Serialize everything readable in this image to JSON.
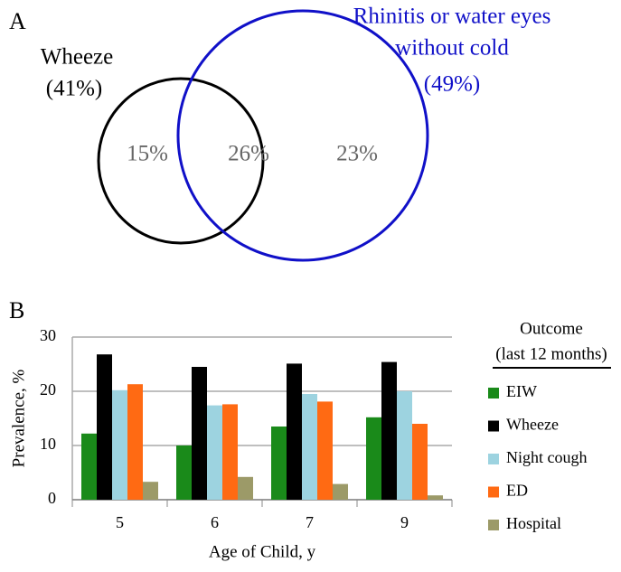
{
  "chart_data": [
    {
      "type": "venn",
      "panel": "A",
      "sets": [
        {
          "label": [
            "Wheeze"
          ],
          "value": 41,
          "value_label": "(41%)",
          "color": "#000000"
        },
        {
          "label": [
            "Rhinitis or water eyes",
            "without cold"
          ],
          "value": 49,
          "value_label": "(49%)",
          "color": "#1010c8"
        }
      ],
      "values": [
        15,
        26,
        23
      ],
      "value_labels": [
        "15%",
        "26%",
        "23%"
      ]
    },
    {
      "type": "bar",
      "panel": "B",
      "xlabel": "Age of Child, y",
      "ylabel": "Prevalence, %",
      "categories": [
        "5",
        "6",
        "7",
        "9"
      ],
      "ylim": [
        0,
        30
      ],
      "yticks": [
        0,
        10,
        20,
        30
      ],
      "grid": true,
      "legend_title": [
        "Outcome",
        "(last 12 months)"
      ],
      "series": [
        {
          "name": "EIW",
          "color": "#1a8a1a",
          "values": [
            12.2,
            10,
            13.5,
            15.2
          ]
        },
        {
          "name": "Wheeze",
          "color": "#000000",
          "values": [
            26.8,
            24.5,
            25.1,
            25.4
          ]
        },
        {
          "name": "Night cough",
          "color": "#9dd3e0",
          "values": [
            20.2,
            17.4,
            19.5,
            20
          ]
        },
        {
          "name": "ED",
          "color": "#ff6a13",
          "values": [
            21.3,
            17.6,
            18.1,
            14
          ]
        },
        {
          "name": "Hospital",
          "color": "#9c9a68",
          "values": [
            3.3,
            4.2,
            2.9,
            0.8
          ]
        }
      ]
    }
  ]
}
